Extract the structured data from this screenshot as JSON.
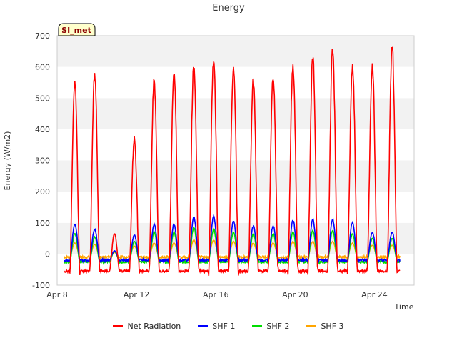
{
  "chart_data": {
    "type": "line",
    "title": "Energy",
    "xlabel": "Time",
    "ylabel": "Energy (W/m2)",
    "site_badge": "SI_met",
    "xlim_days": [
      8,
      26
    ],
    "ylim": [
      -100,
      700
    ],
    "yticks": [
      -100,
      0,
      100,
      200,
      300,
      400,
      500,
      600,
      700
    ],
    "xticks": [
      {
        "day": 8,
        "label": "Apr 8"
      },
      {
        "day": 12,
        "label": "Apr 12"
      },
      {
        "day": 16,
        "label": "Apr 16"
      },
      {
        "day": 20,
        "label": "Apr 20"
      },
      {
        "day": 24,
        "label": "Apr 24"
      }
    ],
    "grid": "horizontal bands",
    "legend_position": "bottom-center",
    "series": [
      {
        "name": "Net Radiation",
        "color": "#ff0000",
        "night": -55,
        "daily_peaks": [
          550,
          575,
          65,
          370,
          555,
          580,
          605,
          625,
          595,
          555,
          570,
          605,
          630,
          650,
          605,
          605,
          670
        ]
      },
      {
        "name": "SHF 1",
        "color": "#0000ff",
        "night": -20,
        "daily_peaks": [
          95,
          80,
          10,
          60,
          95,
          95,
          118,
          120,
          105,
          90,
          90,
          108,
          110,
          110,
          100,
          70,
          70
        ]
      },
      {
        "name": "SHF 2",
        "color": "#00dd00",
        "night": -25,
        "daily_peaks": [
          65,
          55,
          8,
          40,
          70,
          70,
          85,
          80,
          70,
          65,
          65,
          70,
          75,
          75,
          65,
          50,
          50
        ]
      },
      {
        "name": "SHF 3",
        "color": "#ffa500",
        "night": -10,
        "daily_peaks": [
          35,
          30,
          5,
          25,
          35,
          35,
          45,
          45,
          40,
          35,
          35,
          40,
          40,
          40,
          35,
          28,
          28
        ]
      }
    ],
    "day_starts": [
      8.0,
      9.0,
      10.0,
      11.0,
      12.0,
      13.0,
      14.0,
      15.0,
      16.0,
      17.0,
      18.0,
      19.0,
      20.0,
      21.0,
      22.0,
      23.0,
      24.0
    ]
  }
}
